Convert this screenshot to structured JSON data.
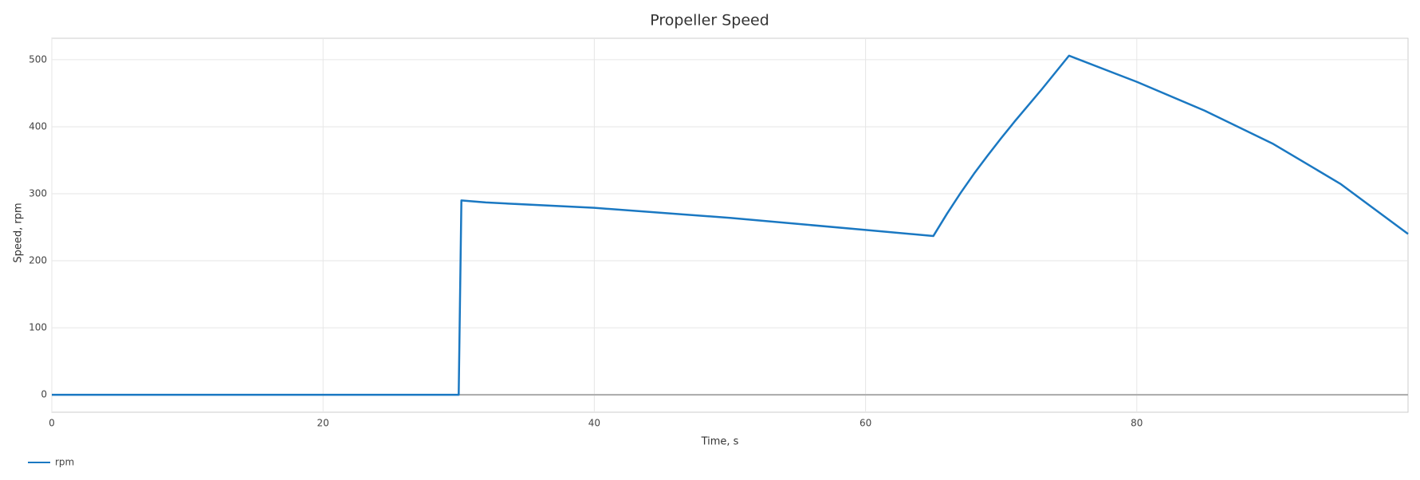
{
  "chart_data": {
    "type": "line",
    "title": "Propeller Speed",
    "x_label": "Time, s",
    "y_label": "Speed, rpm",
    "x": [
      0,
      10,
      20,
      29.9,
      30,
      30.2,
      32,
      40,
      50,
      60,
      65,
      66,
      67,
      68,
      69,
      70,
      71,
      72,
      73,
      74,
      75,
      80,
      85,
      90,
      95,
      100
    ],
    "series": [
      {
        "name": "rpm",
        "color": "#1a78c2",
        "values": [
          0,
          0,
          0,
          0,
          0,
          290,
          287,
          279,
          264,
          246,
          237,
          270,
          301,
          330,
          357,
          383,
          408,
          432,
          456,
          481,
          506,
          467,
          424,
          375,
          315,
          240
        ]
      }
    ],
    "xlim": [
      0,
      100
    ],
    "xticks": [
      0,
      20,
      40,
      60,
      80
    ],
    "ylim": [
      -26,
      532
    ],
    "yticks": [
      0,
      100,
      200,
      300,
      400,
      500
    ],
    "grid": true,
    "legend": "bottom-left"
  }
}
